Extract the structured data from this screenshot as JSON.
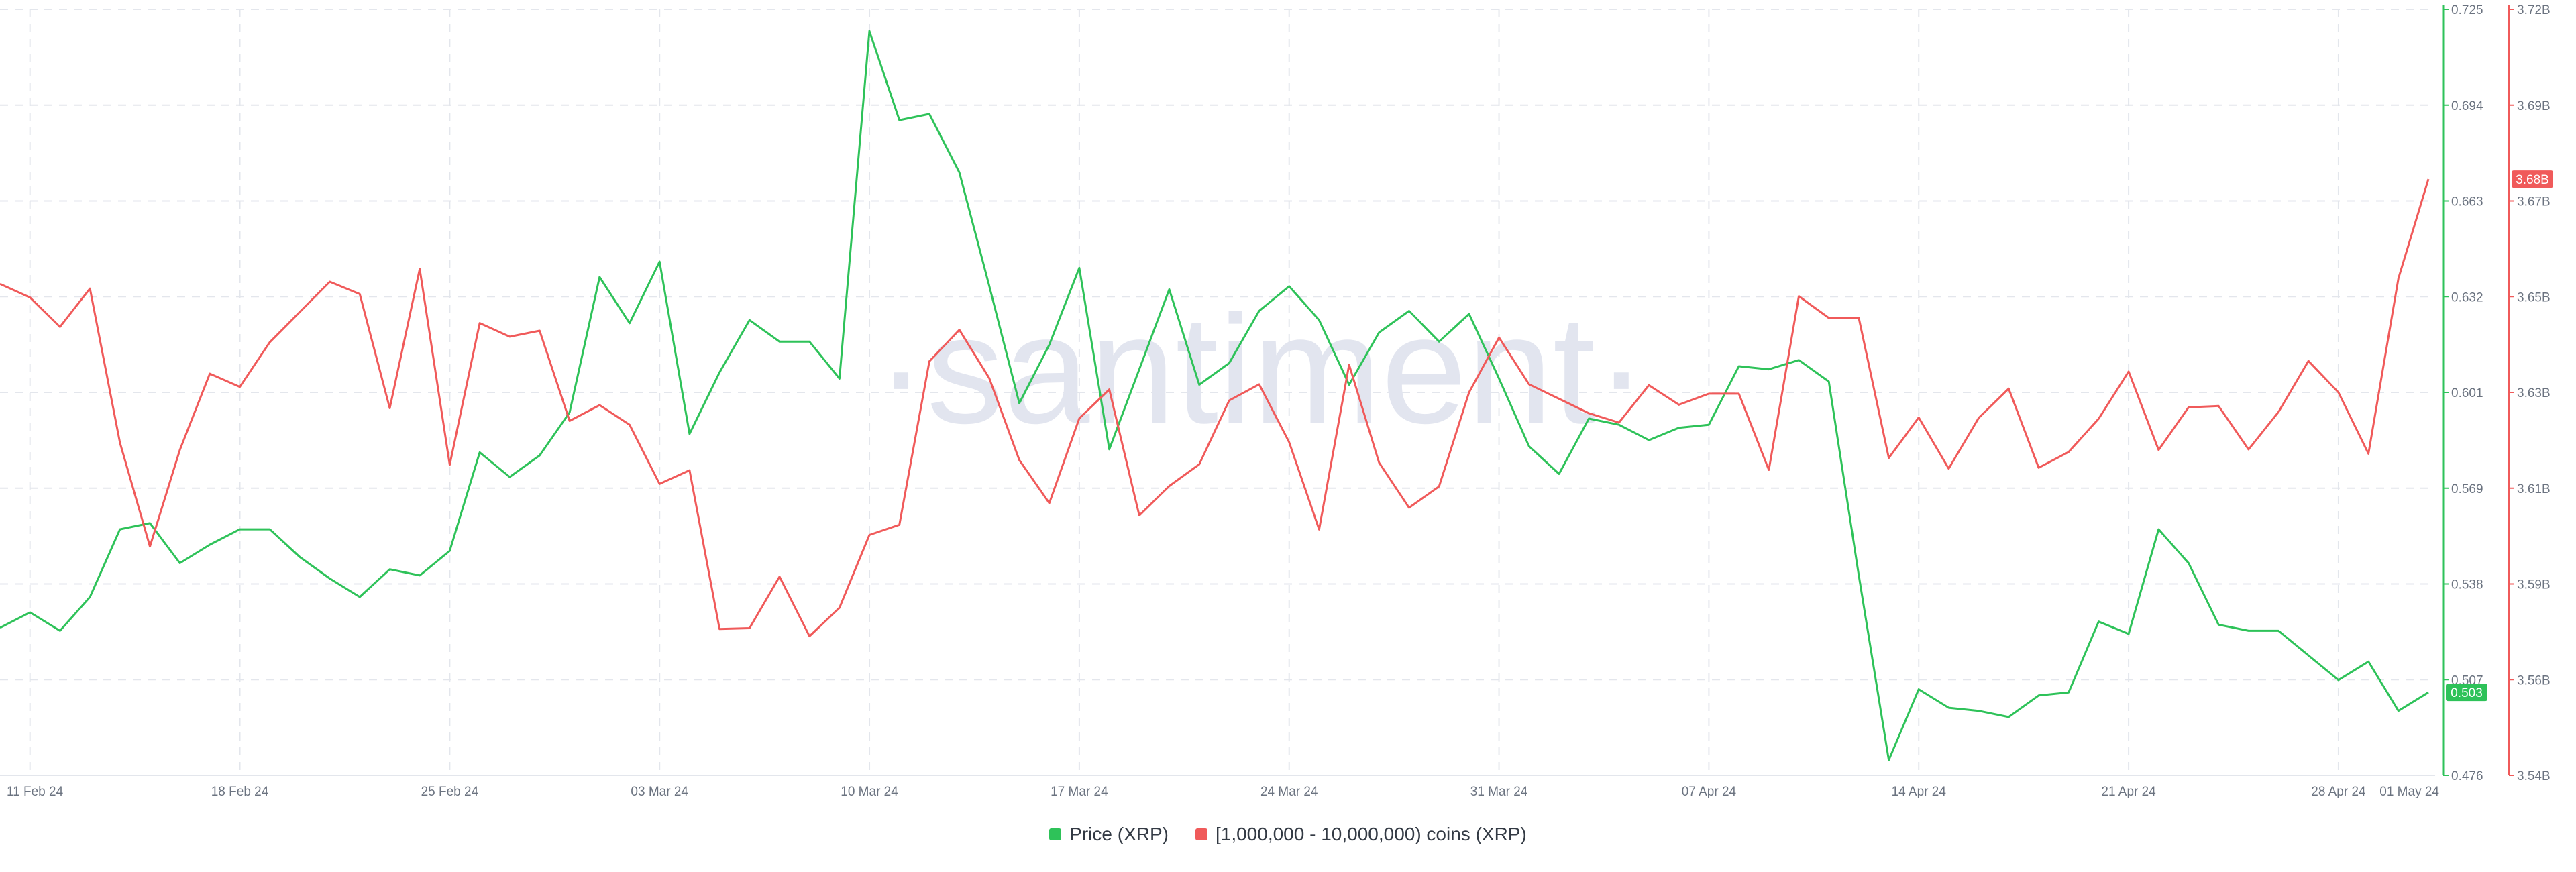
{
  "watermark": "·santiment·",
  "colors": {
    "price": "#2ec259",
    "holders": "#f05a5a",
    "grid": "#e3e6ec",
    "axis_text": "#6b7380"
  },
  "chart_data": {
    "type": "line",
    "title": "",
    "x_tick_labels": [
      "11 Feb 24",
      "18 Feb 24",
      "25 Feb 24",
      "03 Mar 24",
      "10 Mar 24",
      "17 Mar 24",
      "24 Mar 24",
      "31 Mar 24",
      "07 Apr 24",
      "14 Apr 24",
      "21 Apr 24",
      "28 Apr 24",
      "01 May 24"
    ],
    "x_range": [
      "2024-02-10",
      "2024-05-01"
    ],
    "dates": [
      "2024-02-10",
      "2024-02-11",
      "2024-02-12",
      "2024-02-13",
      "2024-02-14",
      "2024-02-15",
      "2024-02-16",
      "2024-02-17",
      "2024-02-18",
      "2024-02-19",
      "2024-02-20",
      "2024-02-21",
      "2024-02-22",
      "2024-02-23",
      "2024-02-24",
      "2024-02-25",
      "2024-02-26",
      "2024-02-27",
      "2024-02-28",
      "2024-02-29",
      "2024-03-01",
      "2024-03-02",
      "2024-03-03",
      "2024-03-04",
      "2024-03-05",
      "2024-03-06",
      "2024-03-07",
      "2024-03-08",
      "2024-03-09",
      "2024-03-10",
      "2024-03-11",
      "2024-03-12",
      "2024-03-13",
      "2024-03-14",
      "2024-03-15",
      "2024-03-16",
      "2024-03-17",
      "2024-03-18",
      "2024-03-19",
      "2024-03-20",
      "2024-03-21",
      "2024-03-22",
      "2024-03-23",
      "2024-03-24",
      "2024-03-25",
      "2024-03-26",
      "2024-03-27",
      "2024-03-28",
      "2024-03-29",
      "2024-03-30",
      "2024-03-31",
      "2024-04-01",
      "2024-04-02",
      "2024-04-03",
      "2024-04-04",
      "2024-04-05",
      "2024-04-06",
      "2024-04-07",
      "2024-04-08",
      "2024-04-09",
      "2024-04-10",
      "2024-04-11",
      "2024-04-12",
      "2024-04-13",
      "2024-04-14",
      "2024-04-15",
      "2024-04-16",
      "2024-04-17",
      "2024-04-18",
      "2024-04-19",
      "2024-04-20",
      "2024-04-21",
      "2024-04-22",
      "2024-04-23",
      "2024-04-24",
      "2024-04-25",
      "2024-04-26",
      "2024-04-27",
      "2024-04-28",
      "2024-04-29",
      "2024-04-30",
      "2024-05-01"
    ],
    "series": [
      {
        "name": "Price (XRP)",
        "axis": "left",
        "color": "#2ec259",
        "values": [
          0.524,
          0.529,
          0.523,
          0.534,
          0.556,
          0.558,
          0.545,
          0.551,
          0.556,
          0.556,
          0.547,
          0.54,
          0.534,
          0.543,
          0.541,
          0.549,
          0.581,
          0.573,
          0.58,
          0.594,
          0.638,
          0.623,
          0.643,
          0.587,
          0.607,
          0.624,
          0.617,
          0.617,
          0.605,
          0.718,
          0.689,
          0.691,
          0.672,
          0.635,
          0.597,
          0.616,
          0.641,
          0.582,
          0.608,
          0.634,
          0.603,
          0.61,
          0.627,
          0.635,
          0.624,
          0.603,
          0.62,
          0.627,
          0.617,
          0.626,
          0.605,
          0.583,
          0.574,
          0.592,
          0.59,
          0.585,
          0.589,
          0.59,
          0.609,
          0.608,
          0.611,
          0.604,
          0.541,
          0.481,
          0.504,
          0.498,
          0.497,
          0.495,
          0.502,
          0.503,
          0.526,
          0.522,
          0.556,
          0.545,
          0.525,
          0.523,
          0.523,
          0.515,
          0.507,
          0.513,
          0.497,
          0.503
        ]
      },
      {
        "name": "[1,000,000 - 10,000,000) coins (XRP)",
        "axis": "right",
        "color": "#f05a5a",
        "values": [
          3.6555,
          3.6523,
          3.6454,
          3.6544,
          3.6182,
          3.5938,
          3.6165,
          3.6344,
          3.6313,
          3.6418,
          3.6489,
          3.656,
          3.6531,
          3.6263,
          3.659,
          3.613,
          3.6463,
          3.6431,
          3.6445,
          3.6233,
          3.627,
          3.6224,
          3.6085,
          3.6117,
          3.5744,
          3.5746,
          3.5867,
          3.5727,
          3.5794,
          3.5965,
          3.5989,
          3.6373,
          3.6447,
          3.6333,
          3.6141,
          3.604,
          3.6239,
          3.6307,
          3.6011,
          3.608,
          3.6131,
          3.6281,
          3.6319,
          3.6183,
          3.5978,
          3.6365,
          3.6135,
          3.6029,
          3.6079,
          3.63,
          3.6429,
          3.6319,
          3.6285,
          3.6251,
          3.6229,
          3.6317,
          3.6271,
          3.6297,
          3.6297,
          3.6118,
          3.6526,
          3.6475,
          3.6475,
          3.6146,
          3.6241,
          3.6121,
          3.624,
          3.6309,
          3.6123,
          3.616,
          3.6238,
          3.6349,
          3.6165,
          3.6265,
          3.6268,
          3.6166,
          3.6254,
          3.6374,
          3.63,
          3.6156,
          3.6568,
          3.6801
        ]
      }
    ],
    "left_axis": {
      "min": 0.476,
      "max": 0.725,
      "ticks": [
        "0.476",
        "0.507",
        "0.538",
        "0.569",
        "0.601",
        "0.632",
        "0.663",
        "0.694",
        "0.725"
      ]
    },
    "right_axis": {
      "min": 3.54,
      "max": 3.72,
      "ticks": [
        "3.54B",
        "3.56B",
        "3.59B",
        "3.61B",
        "3.63B",
        "3.65B",
        "3.67B",
        "3.69B",
        "3.72B"
      ]
    },
    "current_labels": {
      "price": "0.503",
      "holders": "3.68B"
    },
    "legend": {
      "placement": "bottom-center",
      "items": [
        {
          "label": "Price (XRP)",
          "color": "#2ec259"
        },
        {
          "label": "[1,000,000 - 10,000,000) coins (XRP)",
          "color": "#f05a5a"
        }
      ]
    },
    "grid": true
  }
}
